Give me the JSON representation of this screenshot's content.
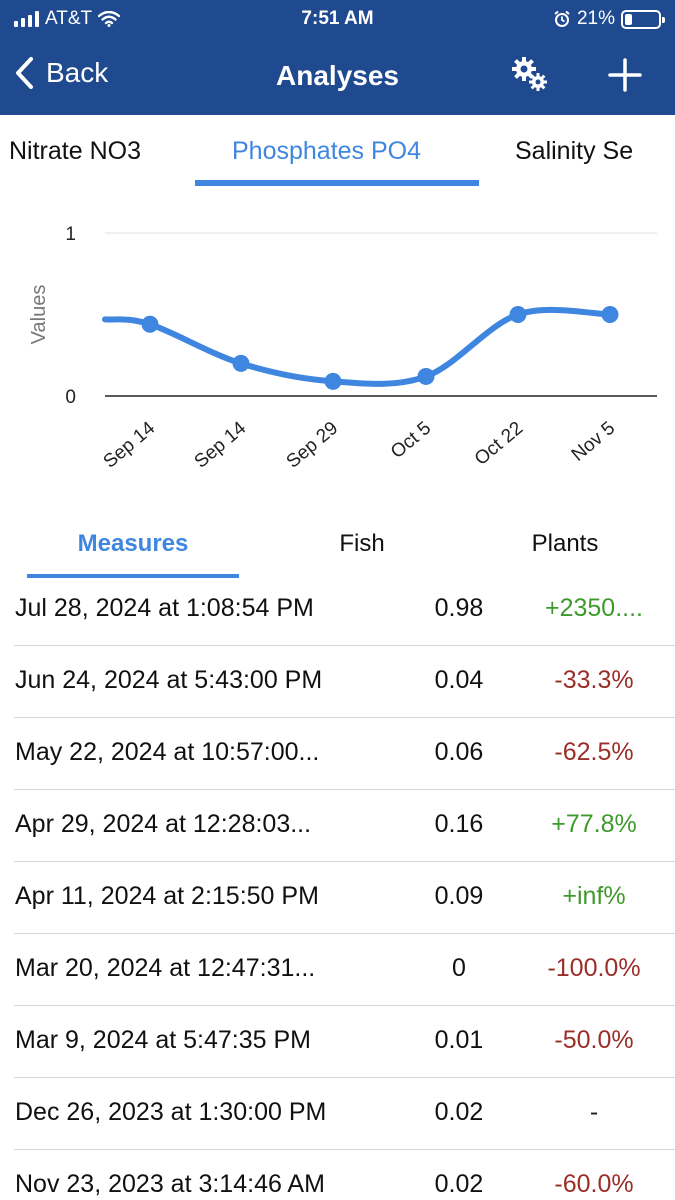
{
  "status_bar": {
    "carrier": "AT&T",
    "time": "7:51 AM",
    "battery_text": "21%",
    "battery_level": 0.21
  },
  "nav": {
    "back_label": "Back",
    "title": "Analyses",
    "settings_icon": "gear-icon",
    "add_icon": "plus-icon"
  },
  "top_tabs": [
    {
      "label": "Nitrate NO3",
      "active": false
    },
    {
      "label": "Phosphates PO4",
      "active": true
    },
    {
      "label": "Salinity Se",
      "active": false
    }
  ],
  "chart_data": {
    "type": "line",
    "categories": [
      "Sep 14",
      "Sep 14",
      "Sep 29",
      "Oct 5",
      "Oct 22",
      "Nov 5"
    ],
    "values": [
      0.44,
      0.2,
      0.09,
      0.12,
      0.5,
      0.5
    ],
    "start_value": 0.47,
    "ylabel": "Values",
    "ylim": [
      0,
      1
    ],
    "y_ticks": [
      0,
      1
    ],
    "grid": true,
    "color": "#3f86e0"
  },
  "sub_tabs": [
    {
      "label": "Measures",
      "active": true
    },
    {
      "label": "Fish",
      "active": false
    },
    {
      "label": "Plants",
      "active": false
    }
  ],
  "measures": [
    {
      "date": "Jul 28, 2024 at 1:08:54 PM",
      "value": "0.98",
      "change": "+2350....",
      "trend": "pos"
    },
    {
      "date": "Jun 24, 2024 at 5:43:00 PM",
      "value": "0.04",
      "change": "-33.3%",
      "trend": "neg"
    },
    {
      "date": "May 22, 2024 at 10:57:00...",
      "value": "0.06",
      "change": "-62.5%",
      "trend": "neg"
    },
    {
      "date": "Apr 29, 2024 at 12:28:03...",
      "value": "0.16",
      "change": "+77.8%",
      "trend": "pos"
    },
    {
      "date": "Apr 11, 2024 at 2:15:50 PM",
      "value": "0.09",
      "change": "+inf%",
      "trend": "pos"
    },
    {
      "date": "Mar 20, 2024 at 12:47:31...",
      "value": "0",
      "change": "-100.0%",
      "trend": "neg"
    },
    {
      "date": "Mar 9, 2024 at 5:47:35 PM",
      "value": "0.01",
      "change": "-50.0%",
      "trend": "neg"
    },
    {
      "date": "Dec 26, 2023 at 1:30:00 PM",
      "value": "0.02",
      "change": "-",
      "trend": "neu"
    },
    {
      "date": "Nov 23, 2023 at 3:14:46 AM",
      "value": "0.02",
      "change": "-60.0%",
      "trend": "neg"
    }
  ],
  "colors": {
    "header_bg": "#1f4a8f",
    "accent": "#3f86e0",
    "positive": "#3f9a2d",
    "negative": "#9a2f2a"
  }
}
